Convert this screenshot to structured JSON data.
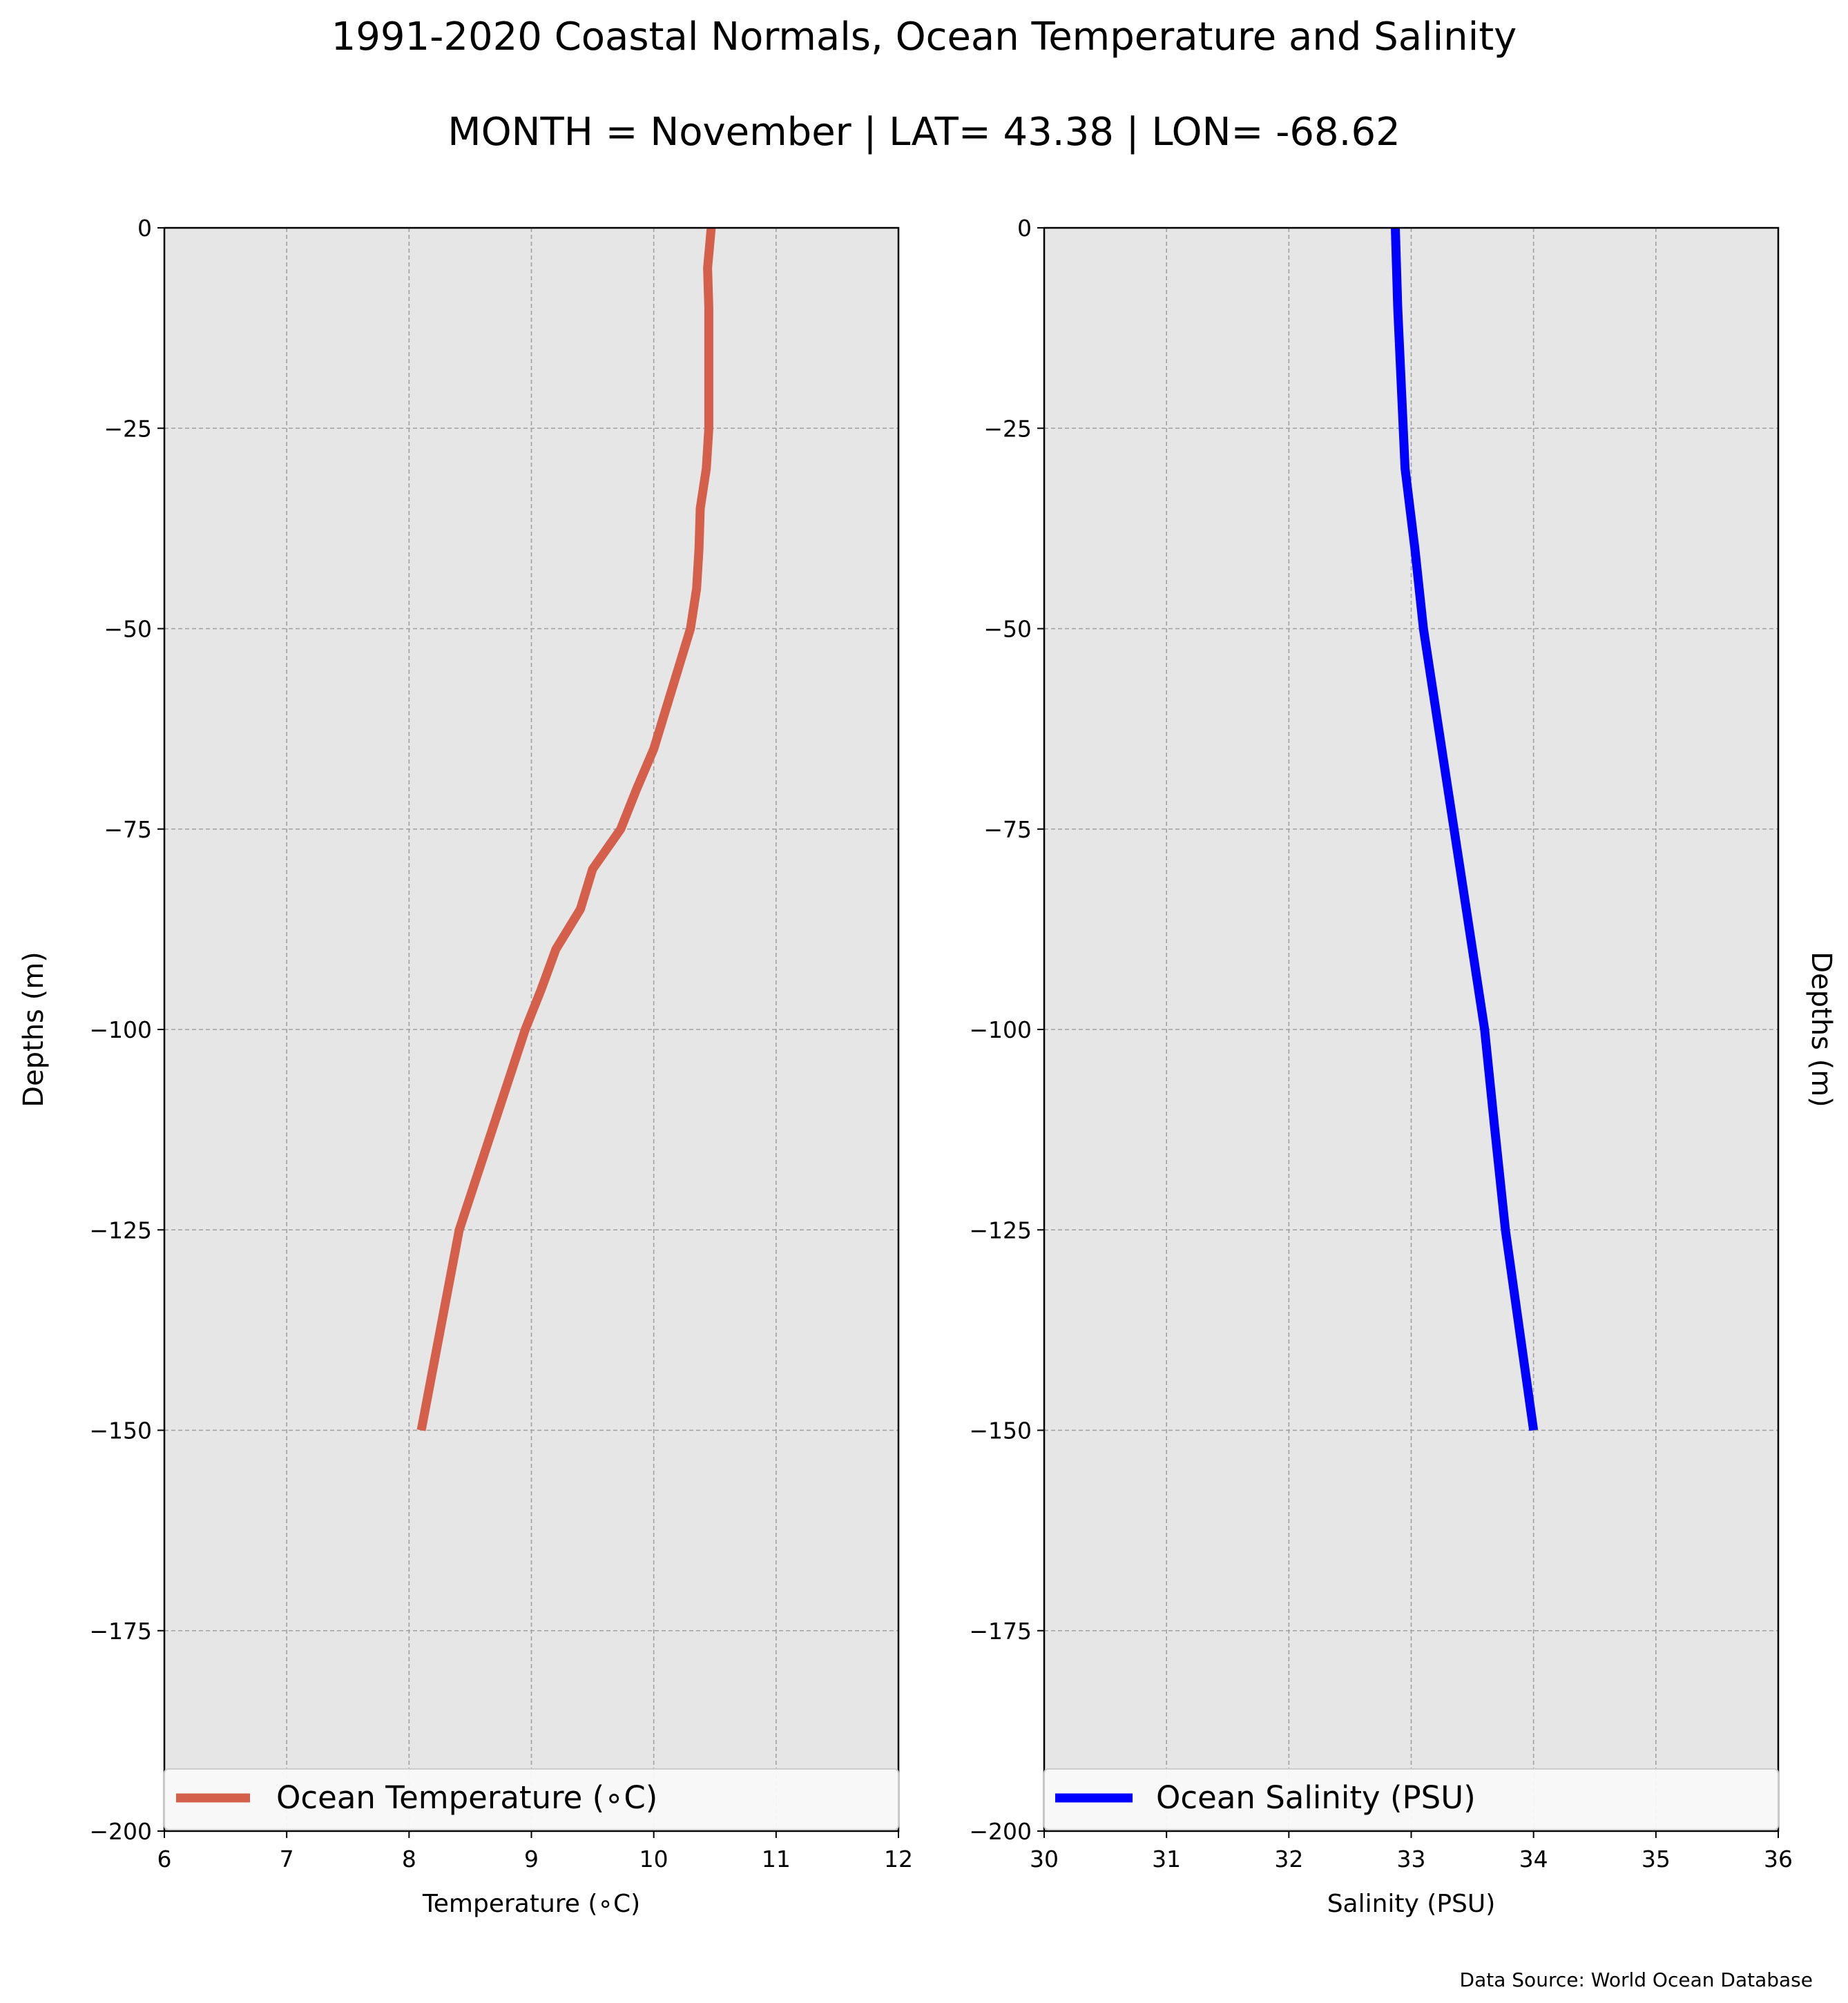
{
  "figure": {
    "title": "1991-2020 Coastal Normals, Ocean Temperature and Salinity",
    "subtitle": "MONTH = November | LAT= 43.38 | LON= -68.62",
    "source_note": "Data Source: World Ocean Database"
  },
  "chart_data": [
    {
      "type": "line",
      "xlabel": "Temperature (∘C)",
      "ylabel": "Depths (m)",
      "xlim": [
        6,
        12
      ],
      "ylim": [
        -200,
        0
      ],
      "xticks": [
        "6",
        "7",
        "8",
        "9",
        "10",
        "11",
        "12"
      ],
      "yticks": [
        "0",
        "−25",
        "−50",
        "−75",
        "−100",
        "−125",
        "−150",
        "−175",
        "−200"
      ],
      "grid": true,
      "legend_placement": "lower-center",
      "background_color": "#e6e6e6",
      "series": [
        {
          "name": "Ocean Temperature (∘C)",
          "color": "#d45f4a",
          "points": [
            [
              10.47,
              0
            ],
            [
              10.44,
              -5
            ],
            [
              10.45,
              -10
            ],
            [
              10.45,
              -15
            ],
            [
              10.45,
              -20
            ],
            [
              10.45,
              -25
            ],
            [
              10.43,
              -30
            ],
            [
              10.38,
              -35
            ],
            [
              10.37,
              -40
            ],
            [
              10.35,
              -45
            ],
            [
              10.3,
              -50
            ],
            [
              10.2,
              -55
            ],
            [
              10.1,
              -60
            ],
            [
              10.0,
              -65
            ],
            [
              9.86,
              -70
            ],
            [
              9.73,
              -75
            ],
            [
              9.5,
              -80
            ],
            [
              9.4,
              -85
            ],
            [
              9.2,
              -90
            ],
            [
              9.08,
              -95
            ],
            [
              8.95,
              -100
            ],
            [
              8.41,
              -125
            ],
            [
              8.1,
              -150
            ]
          ]
        }
      ]
    },
    {
      "type": "line",
      "xlabel": "Salinity (PSU)",
      "ylabel": "Depths (m)",
      "xlim": [
        30,
        36
      ],
      "ylim": [
        -200,
        0
      ],
      "xticks": [
        "30",
        "31",
        "32",
        "33",
        "34",
        "35",
        "36"
      ],
      "yticks": [
        "0",
        "−25",
        "−50",
        "−75",
        "−100",
        "−125",
        "−150",
        "−175",
        "−200"
      ],
      "grid": true,
      "legend_placement": "lower-center",
      "background_color": "#e6e6e6",
      "series": [
        {
          "name": "Ocean Salinity (PSU)",
          "color": "#0000ff",
          "points": [
            [
              32.87,
              0
            ],
            [
              32.89,
              -10
            ],
            [
              32.92,
              -20
            ],
            [
              32.95,
              -30
            ],
            [
              33.03,
              -40
            ],
            [
              33.1,
              -50
            ],
            [
              33.2,
              -60
            ],
            [
              33.3,
              -70
            ],
            [
              33.4,
              -80
            ],
            [
              33.5,
              -90
            ],
            [
              33.6,
              -100
            ],
            [
              33.68,
              -112
            ],
            [
              33.77,
              -125
            ],
            [
              34.0,
              -150
            ]
          ]
        }
      ]
    }
  ]
}
